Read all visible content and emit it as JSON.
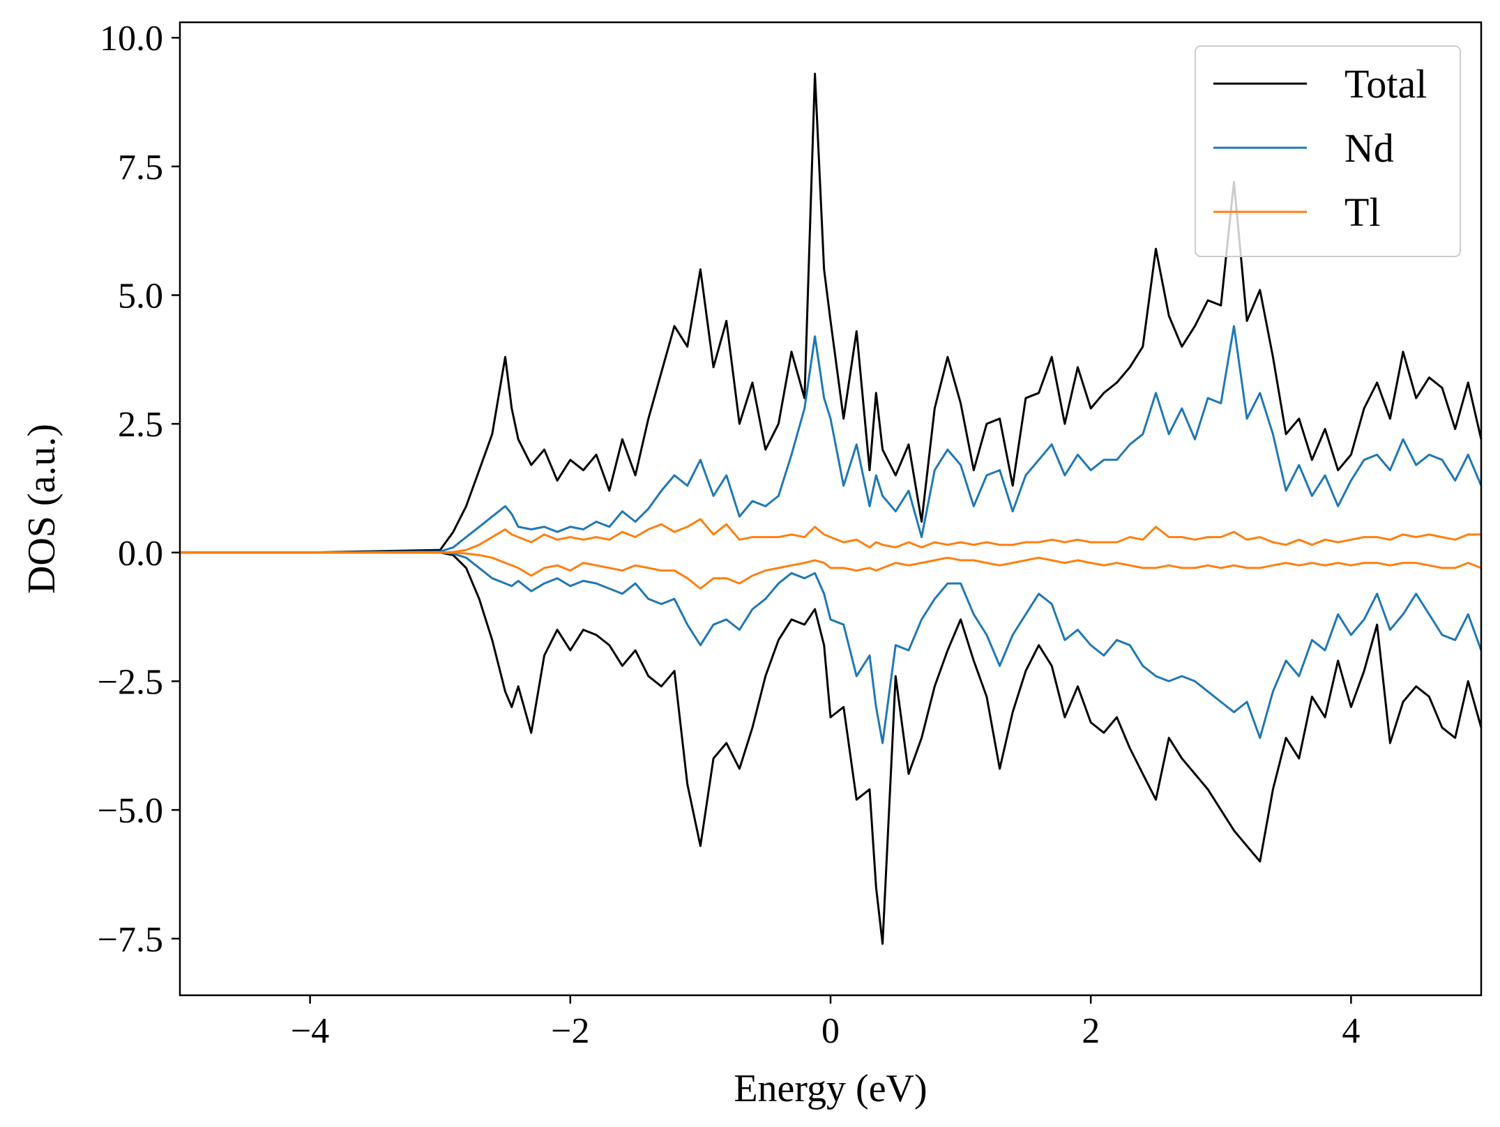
{
  "chart_data": {
    "type": "line",
    "title": "",
    "xlabel": "Energy (eV)",
    "ylabel": "DOS (a.u.)",
    "xlim": [
      -5,
      5
    ],
    "ylim": [
      -8.6,
      10.3
    ],
    "xticks": [
      -4,
      -2,
      0,
      2,
      4
    ],
    "xtick_labels": [
      "−4",
      "−2",
      "0",
      "2",
      "4"
    ],
    "yticks": [
      -7.5,
      -5.0,
      -2.5,
      0.0,
      2.5,
      5.0,
      7.5,
      10.0
    ],
    "ytick_labels": [
      "−7.5",
      "−5.0",
      "−2.5",
      "0.0",
      "2.5",
      "5.0",
      "7.5",
      "10.0"
    ],
    "grid": false,
    "legend_position": "top-right",
    "legend": [
      "Total",
      "Nd",
      "Tl"
    ],
    "colors": {
      "Total": "#000000",
      "Nd": "#1f77b4",
      "Tl": "#ff7f0e"
    },
    "x": [
      -5.0,
      -4.0,
      -3.0,
      -2.9,
      -2.8,
      -2.7,
      -2.6,
      -2.5,
      -2.45,
      -2.4,
      -2.3,
      -2.2,
      -2.1,
      -2.0,
      -1.9,
      -1.8,
      -1.7,
      -1.6,
      -1.5,
      -1.4,
      -1.3,
      -1.2,
      -1.1,
      -1.0,
      -0.9,
      -0.8,
      -0.7,
      -0.6,
      -0.5,
      -0.4,
      -0.3,
      -0.2,
      -0.12,
      -0.05,
      0.0,
      0.1,
      0.2,
      0.3,
      0.35,
      0.4,
      0.5,
      0.6,
      0.7,
      0.8,
      0.9,
      1.0,
      1.1,
      1.2,
      1.3,
      1.4,
      1.5,
      1.6,
      1.7,
      1.8,
      1.9,
      2.0,
      2.1,
      2.2,
      2.3,
      2.4,
      2.5,
      2.6,
      2.7,
      2.8,
      2.9,
      3.0,
      3.1,
      3.2,
      3.3,
      3.4,
      3.5,
      3.6,
      3.7,
      3.8,
      3.9,
      4.0,
      4.1,
      4.2,
      4.3,
      4.4,
      4.5,
      4.6,
      4.7,
      4.8,
      4.9,
      5.0
    ],
    "series": [
      {
        "name": "Total",
        "spin_up": [
          0,
          0,
          0.05,
          0.4,
          0.9,
          1.6,
          2.3,
          3.8,
          2.8,
          2.2,
          1.7,
          2.0,
          1.4,
          1.8,
          1.6,
          1.9,
          1.2,
          2.2,
          1.5,
          2.6,
          3.5,
          4.4,
          4.0,
          5.5,
          3.6,
          4.5,
          2.5,
          3.3,
          2.0,
          2.5,
          3.9,
          3.0,
          9.3,
          5.5,
          4.5,
          2.6,
          4.3,
          1.6,
          3.1,
          2.0,
          1.5,
          2.1,
          0.6,
          2.8,
          3.8,
          2.9,
          1.6,
          2.5,
          2.6,
          1.3,
          3.0,
          3.1,
          3.8,
          2.5,
          3.6,
          2.8,
          3.1,
          3.3,
          3.6,
          4.0,
          5.9,
          4.6,
          4.0,
          4.4,
          4.9,
          4.8,
          7.2,
          4.5,
          5.1,
          3.8,
          2.3,
          2.6,
          1.8,
          2.4,
          1.6,
          1.9,
          2.8,
          3.3,
          2.6,
          3.9,
          3.0,
          3.4,
          3.2,
          2.4,
          3.3,
          2.2
        ],
        "spin_down": [
          0,
          0,
          0,
          -0.05,
          -0.3,
          -0.9,
          -1.7,
          -2.7,
          -3.0,
          -2.6,
          -3.5,
          -2.0,
          -1.5,
          -1.9,
          -1.5,
          -1.6,
          -1.8,
          -2.2,
          -1.9,
          -2.4,
          -2.6,
          -2.3,
          -4.5,
          -5.7,
          -4.0,
          -3.7,
          -4.2,
          -3.4,
          -2.4,
          -1.7,
          -1.3,
          -1.4,
          -1.1,
          -1.8,
          -3.2,
          -3.0,
          -4.8,
          -4.6,
          -6.5,
          -7.6,
          -2.4,
          -4.3,
          -3.6,
          -2.6,
          -1.9,
          -1.3,
          -2.1,
          -2.8,
          -4.2,
          -3.1,
          -2.3,
          -1.8,
          -2.2,
          -3.2,
          -2.6,
          -3.3,
          -3.5,
          -3.2,
          -3.8,
          -4.3,
          -4.8,
          -3.6,
          -4.0,
          -4.3,
          -4.6,
          -5.0,
          -5.4,
          -5.7,
          -6.0,
          -4.6,
          -3.6,
          -4.0,
          -2.8,
          -3.2,
          -2.1,
          -3.0,
          -2.3,
          -1.4,
          -3.7,
          -2.9,
          -2.6,
          -2.8,
          -3.4,
          -3.6,
          -2.5,
          -3.4
        ]
      },
      {
        "name": "Nd",
        "spin_up": [
          0,
          0,
          0.02,
          0.1,
          0.3,
          0.5,
          0.7,
          0.9,
          0.75,
          0.5,
          0.45,
          0.5,
          0.4,
          0.5,
          0.45,
          0.6,
          0.5,
          0.8,
          0.6,
          0.85,
          1.2,
          1.5,
          1.3,
          1.8,
          1.1,
          1.5,
          0.7,
          1.0,
          0.9,
          1.1,
          1.9,
          2.8,
          4.2,
          3.0,
          2.6,
          1.3,
          2.1,
          0.9,
          1.5,
          1.1,
          0.8,
          1.2,
          0.3,
          1.6,
          2.0,
          1.7,
          0.9,
          1.5,
          1.6,
          0.8,
          1.5,
          1.8,
          2.1,
          1.5,
          1.9,
          1.6,
          1.8,
          1.8,
          2.1,
          2.3,
          3.1,
          2.3,
          2.8,
          2.2,
          3.0,
          2.9,
          4.4,
          2.6,
          3.1,
          2.3,
          1.2,
          1.7,
          1.1,
          1.5,
          0.9,
          1.4,
          1.8,
          1.9,
          1.6,
          2.2,
          1.7,
          1.9,
          1.8,
          1.4,
          1.9,
          1.3
        ],
        "spin_down": [
          0,
          0,
          0,
          -0.02,
          -0.1,
          -0.3,
          -0.5,
          -0.6,
          -0.65,
          -0.55,
          -0.75,
          -0.6,
          -0.5,
          -0.65,
          -0.55,
          -0.6,
          -0.7,
          -0.8,
          -0.6,
          -0.9,
          -1.0,
          -0.9,
          -1.4,
          -1.8,
          -1.4,
          -1.3,
          -1.5,
          -1.1,
          -0.9,
          -0.6,
          -0.4,
          -0.5,
          -0.4,
          -0.8,
          -1.3,
          -1.4,
          -2.4,
          -2.0,
          -3.0,
          -3.7,
          -1.8,
          -1.9,
          -1.3,
          -0.9,
          -0.6,
          -0.6,
          -1.2,
          -1.6,
          -2.2,
          -1.6,
          -1.2,
          -0.8,
          -1.0,
          -1.7,
          -1.5,
          -1.8,
          -2.0,
          -1.7,
          -1.8,
          -2.2,
          -2.4,
          -2.5,
          -2.4,
          -2.5,
          -2.7,
          -2.9,
          -3.1,
          -2.9,
          -3.6,
          -2.7,
          -2.1,
          -2.4,
          -1.7,
          -1.9,
          -1.2,
          -1.6,
          -1.3,
          -0.8,
          -1.5,
          -1.2,
          -0.8,
          -1.2,
          -1.6,
          -1.7,
          -1.2,
          -1.9
        ]
      },
      {
        "name": "Tl",
        "spin_up": [
          0,
          0,
          0,
          0.01,
          0.05,
          0.15,
          0.3,
          0.45,
          0.35,
          0.3,
          0.2,
          0.35,
          0.25,
          0.3,
          0.25,
          0.3,
          0.25,
          0.4,
          0.3,
          0.45,
          0.55,
          0.4,
          0.5,
          0.65,
          0.35,
          0.55,
          0.25,
          0.3,
          0.3,
          0.3,
          0.35,
          0.3,
          0.5,
          0.35,
          0.3,
          0.2,
          0.25,
          0.1,
          0.2,
          0.15,
          0.1,
          0.2,
          0.1,
          0.2,
          0.15,
          0.2,
          0.15,
          0.2,
          0.15,
          0.15,
          0.2,
          0.2,
          0.25,
          0.2,
          0.25,
          0.2,
          0.2,
          0.2,
          0.3,
          0.25,
          0.5,
          0.3,
          0.3,
          0.25,
          0.3,
          0.3,
          0.4,
          0.25,
          0.3,
          0.2,
          0.15,
          0.25,
          0.15,
          0.25,
          0.2,
          0.25,
          0.3,
          0.3,
          0.25,
          0.35,
          0.3,
          0.35,
          0.3,
          0.25,
          0.35,
          0.35
        ],
        "spin_down": [
          0,
          0,
          0,
          0,
          -0.02,
          -0.05,
          -0.1,
          -0.2,
          -0.25,
          -0.3,
          -0.45,
          -0.3,
          -0.25,
          -0.35,
          -0.2,
          -0.25,
          -0.3,
          -0.35,
          -0.25,
          -0.3,
          -0.35,
          -0.35,
          -0.5,
          -0.7,
          -0.5,
          -0.5,
          -0.6,
          -0.45,
          -0.35,
          -0.3,
          -0.25,
          -0.2,
          -0.15,
          -0.2,
          -0.3,
          -0.3,
          -0.35,
          -0.3,
          -0.35,
          -0.3,
          -0.2,
          -0.25,
          -0.2,
          -0.15,
          -0.1,
          -0.15,
          -0.15,
          -0.2,
          -0.25,
          -0.2,
          -0.15,
          -0.1,
          -0.15,
          -0.2,
          -0.15,
          -0.2,
          -0.25,
          -0.2,
          -0.25,
          -0.3,
          -0.3,
          -0.25,
          -0.3,
          -0.3,
          -0.25,
          -0.3,
          -0.25,
          -0.3,
          -0.3,
          -0.25,
          -0.2,
          -0.25,
          -0.2,
          -0.25,
          -0.2,
          -0.25,
          -0.2,
          -0.2,
          -0.25,
          -0.2,
          -0.2,
          -0.25,
          -0.3,
          -0.3,
          -0.2,
          -0.3
        ]
      }
    ]
  }
}
